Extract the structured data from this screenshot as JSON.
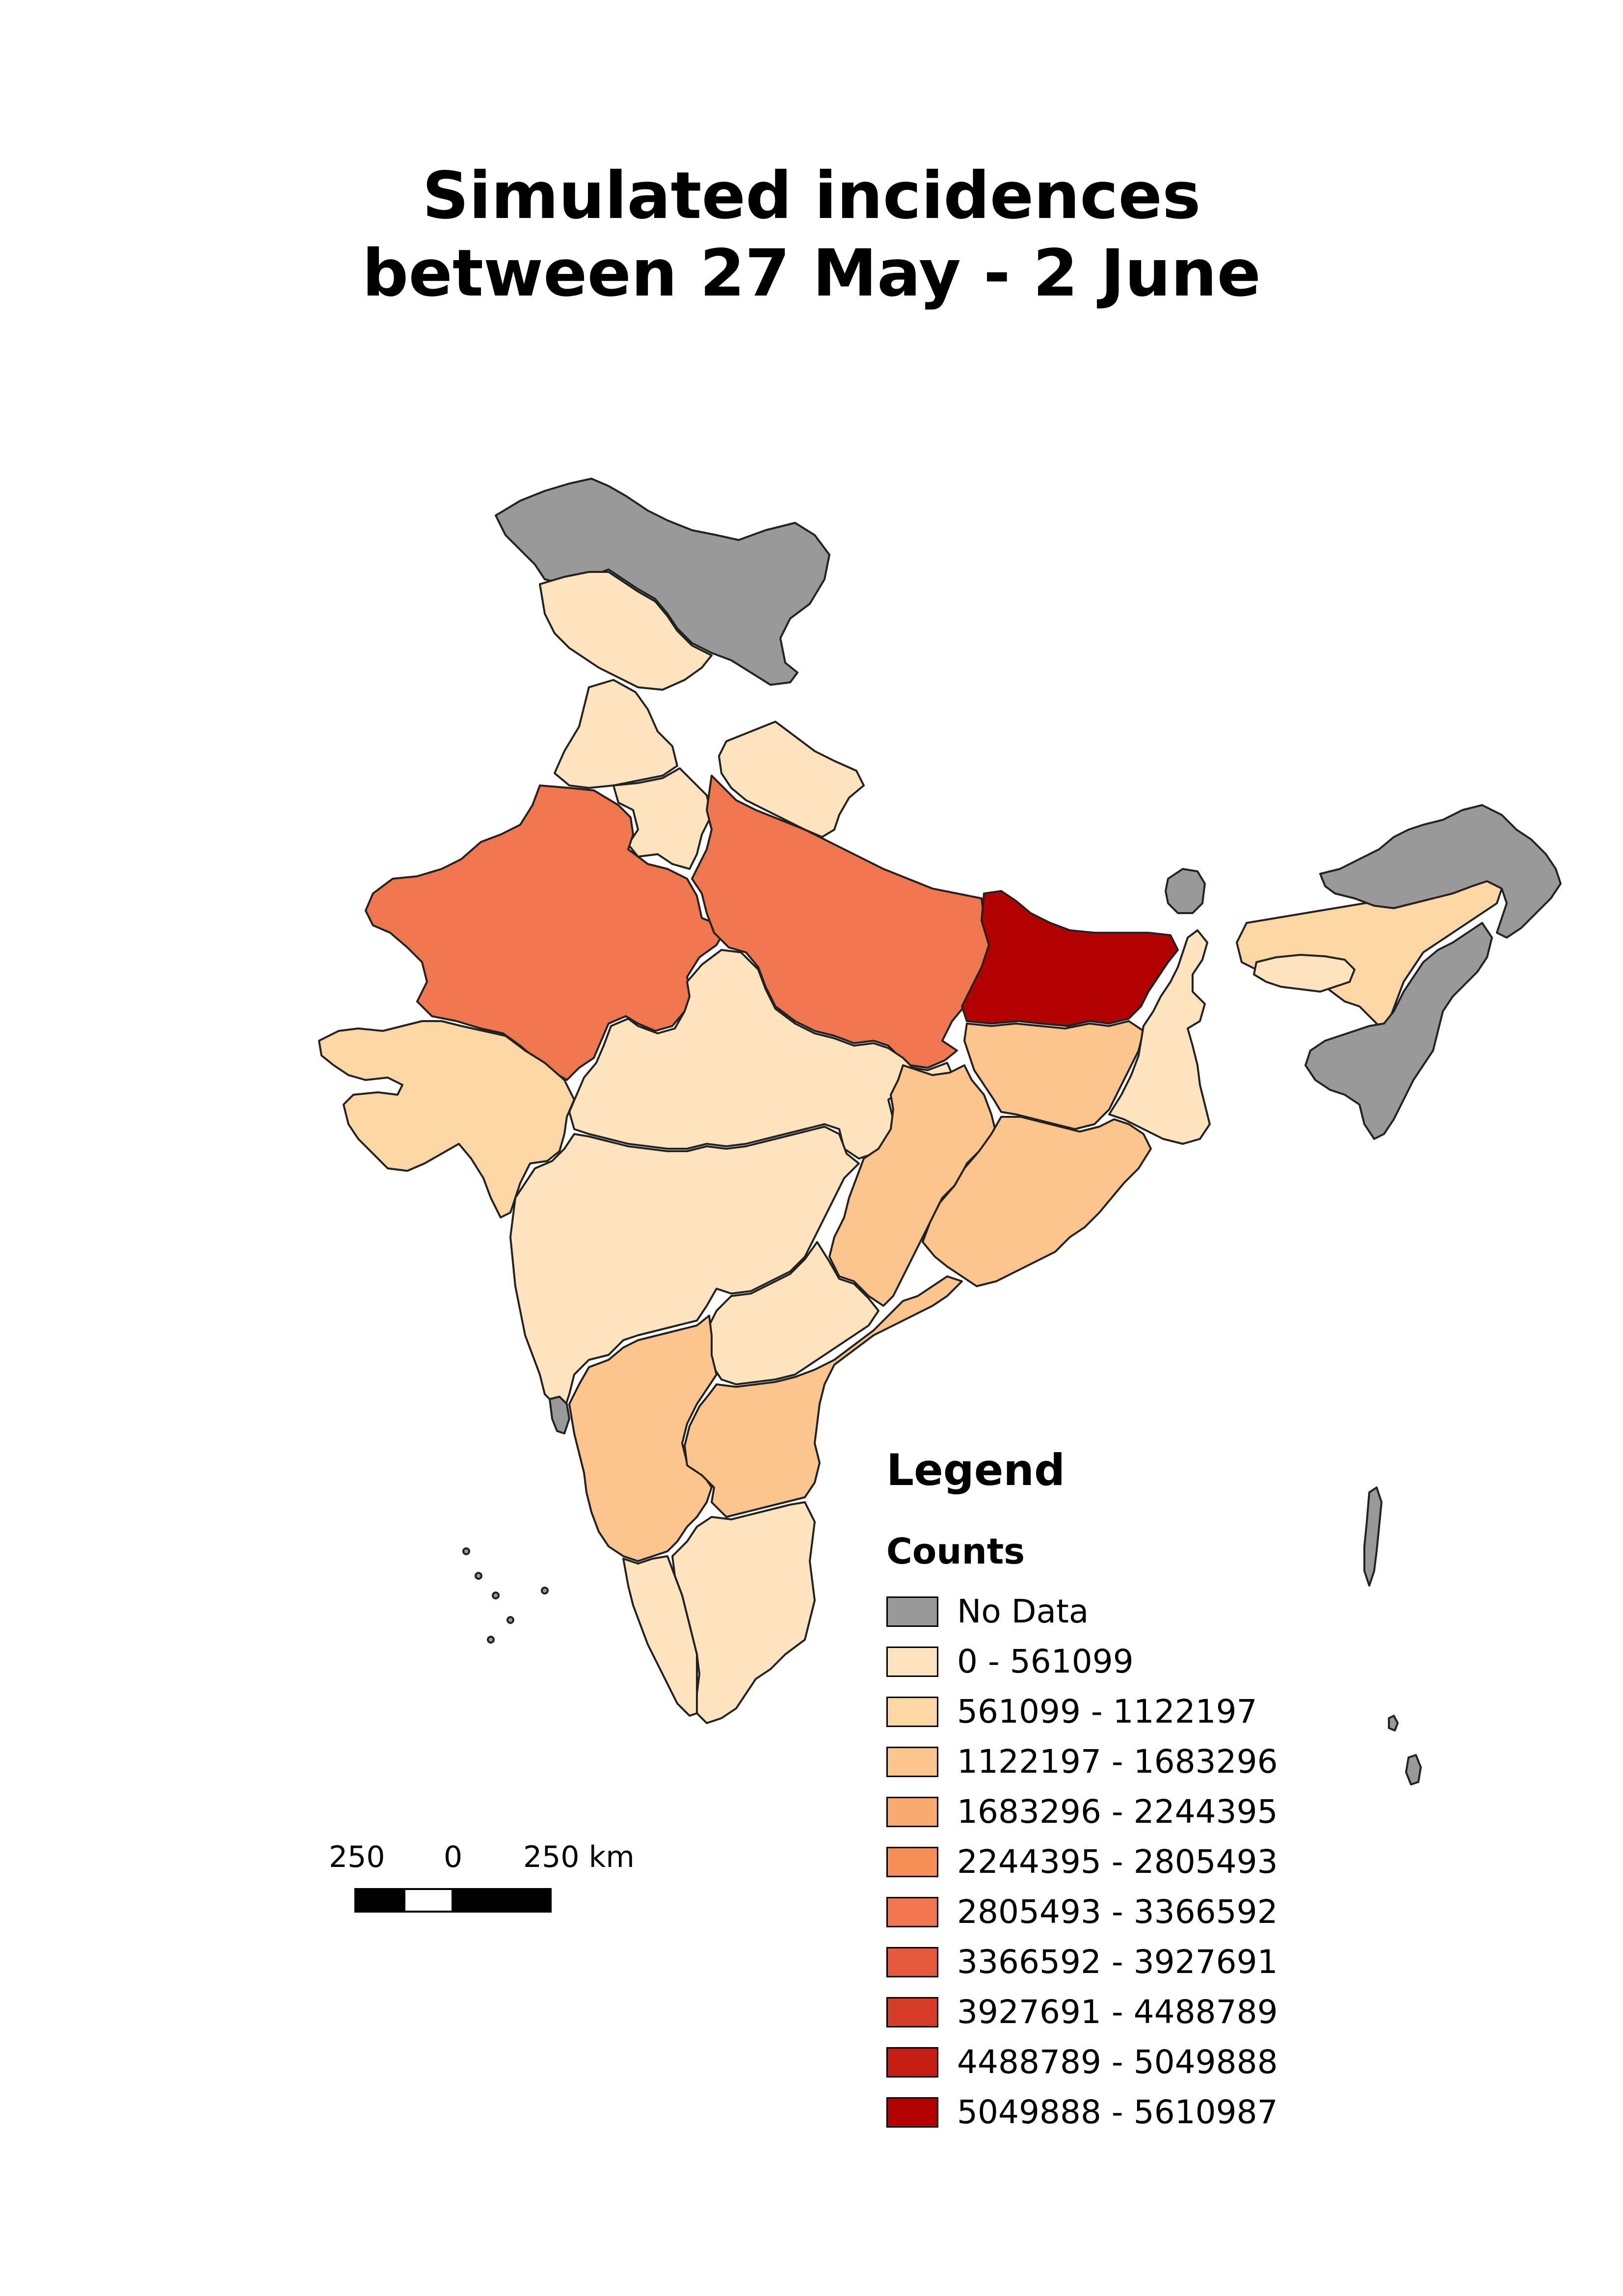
{
  "title": {
    "line1": "Simulated incidences",
    "line2": "between 27 May - 2 June"
  },
  "legend": {
    "heading": "Legend",
    "subheading": "Counts",
    "items": [
      {
        "label": "No Data",
        "color": "#999999"
      },
      {
        "label": "0 - 561099",
        "color": "#fde4bf"
      },
      {
        "label": "561099 - 1122197",
        "color": "#fdd6a6"
      },
      {
        "label": "1122197 - 1683296",
        "color": "#fcc58d"
      },
      {
        "label": "1683296 - 2244395",
        "color": "#fbaa6f"
      },
      {
        "label": "2244395 - 2805493",
        "color": "#f68e57"
      },
      {
        "label": "2805493 - 3366592",
        "color": "#f07650"
      },
      {
        "label": "3366592 - 3927691",
        "color": "#e55a3d"
      },
      {
        "label": "3927691 - 4488789",
        "color": "#d63c28"
      },
      {
        "label": "4488789 - 5049888",
        "color": "#c61d15"
      },
      {
        "label": "5049888 - 5610987",
        "color": "#b30000"
      }
    ]
  },
  "scale_bar": {
    "left_label": "250",
    "mid_label": "0",
    "right_label": "250 km"
  },
  "map_colors": {
    "no_data": "#999999",
    "class1": "#fde4bf",
    "class2": "#fdd6a6",
    "class3": "#fcc58d",
    "class6": "#f07650",
    "class10": "#b30000",
    "border": "#222222"
  }
}
